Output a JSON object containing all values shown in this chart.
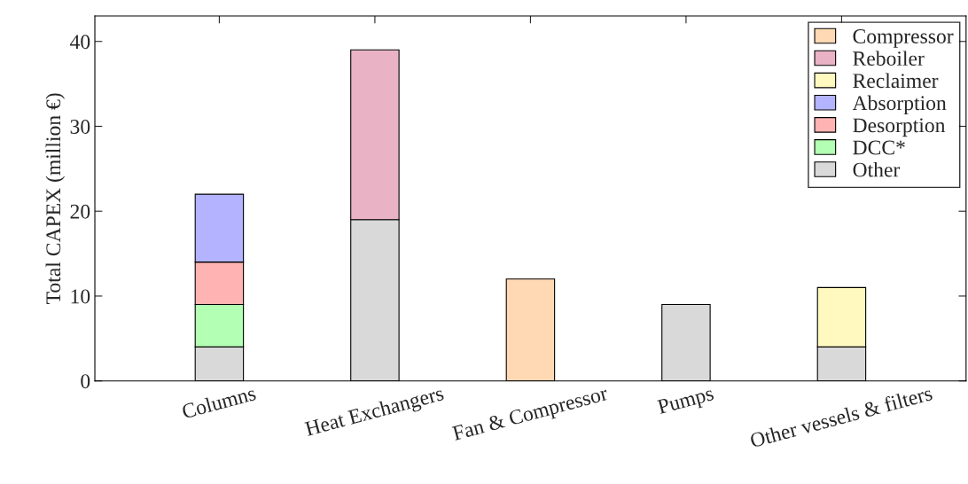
{
  "chart_data": {
    "type": "bar",
    "stacked": true,
    "ylabel": "Total CAPEX (million €)",
    "categories": [
      "Columns",
      "Heat Exchangers",
      "Fan & Compressor",
      "Pumps",
      "Other vessels & filters"
    ],
    "series": [
      {
        "name": "Other",
        "color": "#d9d9d9",
        "values": [
          4,
          19,
          null,
          9,
          4
        ]
      },
      {
        "name": "DCC*",
        "color": "#b3ffb3",
        "values": [
          5,
          null,
          null,
          null,
          null
        ]
      },
      {
        "name": "Desorption",
        "color": "#ffb3b3",
        "values": [
          5,
          null,
          null,
          null,
          null
        ]
      },
      {
        "name": "Absorption",
        "color": "#b3b3ff",
        "values": [
          8,
          null,
          null,
          null,
          null
        ]
      },
      {
        "name": "Reclaimer",
        "color": "#fff9c0",
        "values": [
          null,
          null,
          null,
          null,
          7
        ]
      },
      {
        "name": "Reboiler",
        "color": "#e9b3c5",
        "values": [
          null,
          20,
          null,
          null,
          null
        ]
      },
      {
        "name": "Compressor",
        "color": "#ffd9b3",
        "values": [
          null,
          null,
          12,
          null,
          null
        ]
      }
    ],
    "ylim": [
      0,
      43
    ],
    "yticks": [
      0,
      10,
      20,
      30,
      40
    ],
    "grid": false,
    "legend": "top right"
  }
}
